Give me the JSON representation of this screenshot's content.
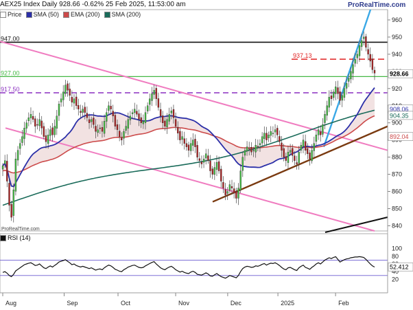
{
  "header": {
    "title": "AEX25 Index Daily 928.66 -0.62% 25 Feb 2025, 11:53:00 am",
    "watermark": "ProRealTime.com",
    "credit": "ProRealTime.com"
  },
  "legend": [
    {
      "label": "Price",
      "color": "#ffffff"
    },
    {
      "label": "SMA (50)",
      "color": "#2b2fa8"
    },
    {
      "label": "EMA (200)",
      "color": "#cc4a4a"
    },
    {
      "label": "SMA (200)",
      "color": "#1a6b5a"
    }
  ],
  "colors": {
    "up_candle": "#44c244",
    "down_candle": "#b02020",
    "sma50": "#2b2fa8",
    "ema200": "#cc4a4a",
    "sma200": "#1a6b5a",
    "channel": "#f07cc0",
    "resistance": "#111111",
    "support": "#7a3a10",
    "trend_up": "#3aa8e6",
    "level_927": "#44b844",
    "level_917": "#8a2ec0",
    "level_937": "#e02020"
  },
  "chart_data": [
    {
      "type": "candlestick",
      "title": "AEX25 Index Daily",
      "x_ticks": [
        "Aug",
        "Sep",
        "Oct",
        "Nov",
        "Dec",
        "2025",
        "Feb"
      ],
      "y_ticks": [
        "960",
        "950",
        "940",
        "930",
        "920",
        "910",
        "900",
        "890",
        "880",
        "870",
        "860",
        "850",
        "840"
      ],
      "ylim": [
        837,
        966
      ],
      "price_closes": [
        875,
        878,
        866,
        852,
        845,
        861,
        879,
        884,
        888,
        892,
        897,
        900,
        903,
        905,
        902,
        898,
        899,
        902,
        897,
        892,
        889,
        893,
        896,
        893,
        898,
        904,
        911,
        914,
        918,
        922,
        919,
        916,
        912,
        914,
        910,
        908,
        906,
        908,
        906,
        903,
        900,
        902,
        899,
        895,
        896,
        897,
        895,
        901,
        906,
        910,
        908,
        904,
        898,
        896,
        892,
        890,
        895,
        898,
        902,
        904,
        906,
        908,
        905,
        902,
        900,
        901,
        906,
        910,
        914,
        917,
        919,
        914,
        909,
        904,
        900,
        898,
        902,
        905,
        907,
        903,
        898,
        894,
        890,
        892,
        888,
        886,
        884,
        888,
        890,
        886,
        880,
        878,
        876,
        879,
        882,
        878,
        872,
        870,
        874,
        877,
        872,
        866,
        862,
        858,
        860,
        864,
        862,
        859,
        856,
        862,
        872,
        880,
        884,
        886,
        885,
        883,
        884,
        887,
        886,
        888,
        892,
        894,
        890,
        893,
        895,
        894,
        896,
        893,
        889,
        884,
        880,
        878,
        883,
        884,
        881,
        878,
        876,
        883,
        887,
        890,
        884,
        882,
        879,
        884,
        888,
        893,
        896,
        893,
        899,
        905,
        910,
        915,
        914,
        918,
        921,
        917,
        913,
        916,
        920,
        923,
        926,
        930,
        934,
        937,
        940,
        945,
        948,
        950,
        944,
        940,
        936,
        931,
        929
      ],
      "levels": [
        {
          "label": "947.00",
          "value": 947
        },
        {
          "label": "927.00",
          "value": 927
        },
        {
          "label": "917.50",
          "value": 917.5
        },
        {
          "label": "937.13",
          "value": 937.13
        }
      ],
      "last_price": {
        "label": "928.66",
        "value": 928.66
      },
      "sma50_last": {
        "label": "908.06",
        "value": 908.06
      },
      "sma200_last": {
        "label": "904.35",
        "value": 904.35
      },
      "ema200_last": {
        "label": "892.04",
        "value": 892.04
      }
    },
    {
      "type": "line",
      "title": "RSI (14)",
      "ylim": [
        10,
        110
      ],
      "y_ticks": [
        "100",
        "80",
        "60",
        "40",
        "20"
      ],
      "bands": [
        70,
        30
      ],
      "last_value": {
        "label": "52.412",
        "value": 52.412
      },
      "values": [
        38,
        40,
        36,
        30,
        27,
        33,
        42,
        46,
        50,
        54,
        58,
        60,
        62,
        63,
        60,
        56,
        57,
        60,
        55,
        50,
        48,
        52,
        55,
        52,
        56,
        60,
        65,
        67,
        69,
        71,
        67,
        63,
        58,
        60,
        56,
        54,
        52,
        54,
        52,
        50,
        48,
        50,
        47,
        44,
        46,
        47,
        45,
        50,
        54,
        57,
        55,
        51,
        46,
        44,
        41,
        40,
        45,
        48,
        52,
        54,
        56,
        57,
        54,
        51,
        50,
        51,
        55,
        58,
        61,
        64,
        66,
        60,
        55,
        50,
        47,
        45,
        49,
        52,
        54,
        50,
        45,
        42,
        39,
        41,
        38,
        36,
        35,
        39,
        41,
        38,
        33,
        32,
        31,
        34,
        37,
        34,
        29,
        28,
        32,
        35,
        31,
        27,
        25,
        23,
        26,
        30,
        28,
        26,
        24,
        30,
        40,
        48,
        52,
        54,
        53,
        51,
        52,
        55,
        54,
        56,
        59,
        61,
        57,
        60,
        62,
        61,
        63,
        60,
        56,
        51,
        47,
        45,
        50,
        51,
        48,
        45,
        43,
        50,
        54,
        57,
        51,
        49,
        46,
        51,
        55,
        60,
        63,
        60,
        65,
        70,
        73,
        76,
        74,
        77,
        79,
        72,
        65,
        68,
        71,
        73,
        74,
        76,
        77,
        78,
        78,
        79,
        78,
        77,
        72,
        66,
        60,
        55,
        52
      ]
    }
  ]
}
